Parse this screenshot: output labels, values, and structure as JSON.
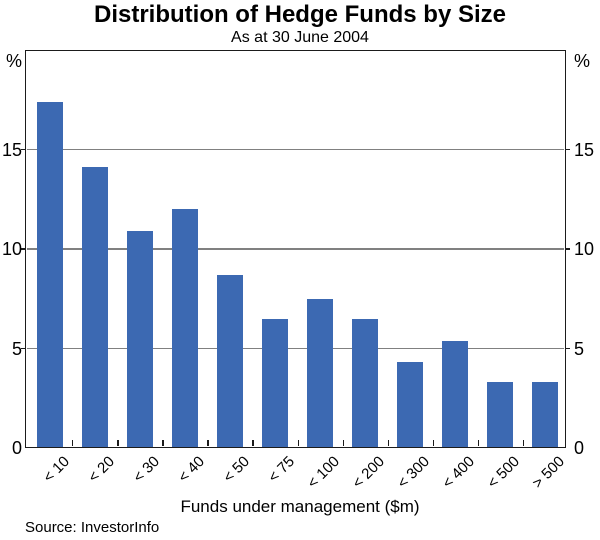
{
  "header": {
    "title": "Distribution of Hedge Funds by Size",
    "subtitle": "As at 30 June 2004"
  },
  "footer": {
    "source": "Source: InvestorInfo"
  },
  "colors": {
    "bar": "#3C69B2",
    "grid": "#808080",
    "frame": "#1b1b1b"
  },
  "chart_data": {
    "type": "bar",
    "title": "Distribution of Hedge Funds by Size",
    "subtitle": "As at 30 June 2004",
    "categories": [
      "< 10",
      "< 20",
      "< 30",
      "< 40",
      "< 50",
      "< 75",
      "< 100",
      "< 200",
      "< 300",
      "< 400",
      "< 500",
      "> 500"
    ],
    "values": [
      17.4,
      14.1,
      10.9,
      12.0,
      8.7,
      6.5,
      7.5,
      6.5,
      4.3,
      5.4,
      3.3,
      3.3
    ],
    "xlabel": "Funds under management ($m)",
    "ylabel_left": "%",
    "ylabel_right": "%",
    "ylim": [
      0,
      20
    ],
    "yticks": [
      0,
      5,
      10,
      15
    ],
    "grid": true,
    "legend": false,
    "source": "Source: InvestorInfo"
  }
}
